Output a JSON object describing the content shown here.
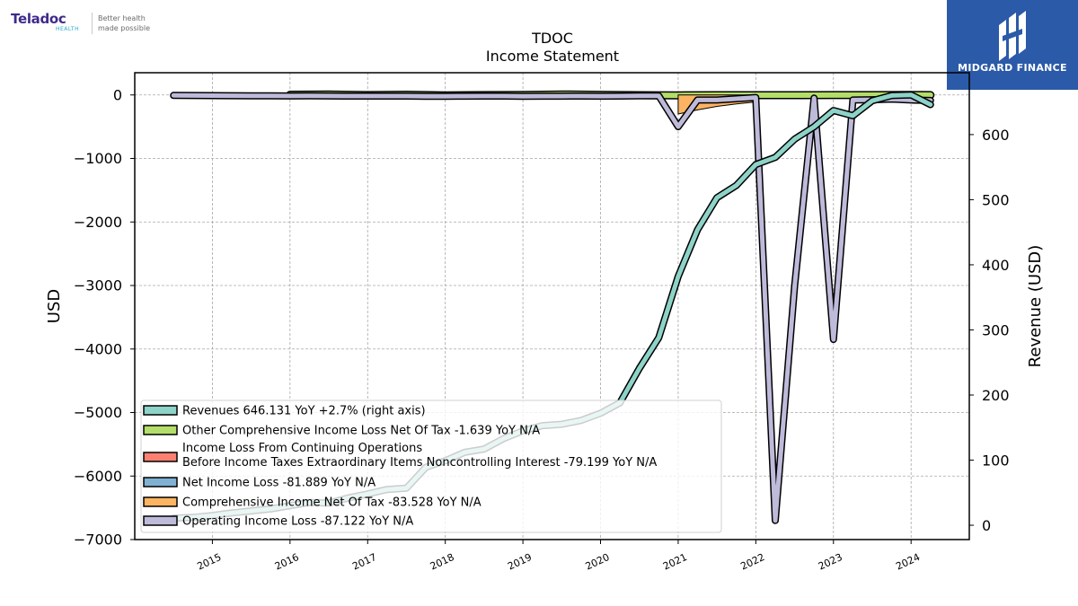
{
  "header": {
    "company_logo": {
      "name": "Teladoc",
      "sub": "HEALTH",
      "tagline_1": "Better health",
      "tagline_2": "made possible"
    },
    "publisher_logo": {
      "name": "MIDGARD FINANCE",
      "color": "#2b5aa8"
    }
  },
  "chart_data": {
    "type": "line",
    "title": "TDOC",
    "subtitle": "Income Statement",
    "ylabel": "USD",
    "ylabel_right": "Revenue (USD)",
    "grid": true,
    "legend_position": "lower-left",
    "xlim": [
      2014.0,
      2024.75
    ],
    "ylim": [
      -7000,
      350
    ],
    "ylim_right": [
      -22,
      695
    ],
    "x_ticks": [
      {
        "value": 2015,
        "label": "2015"
      },
      {
        "value": 2016,
        "label": "2016"
      },
      {
        "value": 2017,
        "label": "2017"
      },
      {
        "value": 2018,
        "label": "2018"
      },
      {
        "value": 2019,
        "label": "2019"
      },
      {
        "value": 2020,
        "label": "2020"
      },
      {
        "value": 2021,
        "label": "2021"
      },
      {
        "value": 2022,
        "label": "2022"
      },
      {
        "value": 2023,
        "label": "2023"
      },
      {
        "value": 2024,
        "label": "2024"
      }
    ],
    "y_ticks_left": [
      {
        "value": 0,
        "label": "0"
      },
      {
        "value": -1000,
        "label": "−1000"
      },
      {
        "value": -2000,
        "label": "−2000"
      },
      {
        "value": -3000,
        "label": "−3000"
      },
      {
        "value": -4000,
        "label": "−4000"
      },
      {
        "value": -5000,
        "label": "−5000"
      },
      {
        "value": -6000,
        "label": "−6000"
      },
      {
        "value": -7000,
        "label": "−7000"
      }
    ],
    "y_ticks_right": [
      {
        "value": 0,
        "label": "0"
      },
      {
        "value": 100,
        "label": "100"
      },
      {
        "value": 200,
        "label": "200"
      },
      {
        "value": 300,
        "label": "300"
      },
      {
        "value": 400,
        "label": "400"
      },
      {
        "value": 500,
        "label": "500"
      },
      {
        "value": 600,
        "label": "600"
      }
    ],
    "series": [
      {
        "name": "Revenues",
        "legend_label": "Revenues  646.131 YoY +2.7% (right axis)",
        "axis": "right",
        "color": "#8dd3c7",
        "style": "thick",
        "x": [
          2014.5,
          2014.75,
          2015.0,
          2015.25,
          2015.5,
          2015.75,
          2016.0,
          2016.25,
          2016.5,
          2016.75,
          2017.0,
          2017.25,
          2017.5,
          2017.75,
          2018.0,
          2018.25,
          2018.5,
          2018.75,
          2019.0,
          2019.25,
          2019.5,
          2019.75,
          2020.0,
          2020.25,
          2020.5,
          2020.75,
          2021.0,
          2021.25,
          2021.5,
          2021.75,
          2022.0,
          2022.25,
          2022.5,
          2022.75,
          2023.0,
          2023.25,
          2023.5,
          2023.75,
          2024.0,
          2024.25
        ],
        "y": [
          11,
          12,
          15,
          19,
          22,
          25,
          30,
          35,
          34,
          42,
          48,
          55,
          57,
          89,
          99,
          112,
          117,
          133,
          145,
          153,
          155,
          161,
          172,
          188,
          241,
          288,
          382,
          454,
          503,
          522,
          554,
          565,
          593,
          612,
          637,
          629,
          652,
          660,
          661,
          646
        ]
      },
      {
        "name": "Other Comprehensive Income Loss Net Of Tax",
        "legend_label": "Other Comprehensive Income Loss Net Of Tax  -1.639 YoY N/A",
        "axis": "left",
        "color": "#b3de69",
        "style": "band",
        "x": [
          2016.0,
          2016.5,
          2017.0,
          2017.5,
          2018.0,
          2018.5,
          2019.0,
          2019.5,
          2020.0,
          2020.5,
          2021.0,
          2021.5,
          2022.0,
          2022.5,
          2023.0,
          2023.5,
          2024.0,
          2024.25
        ],
        "y": [
          4,
          6,
          -2,
          4,
          -6,
          -2,
          0,
          8,
          2,
          -4,
          -6,
          -3,
          -4,
          -3,
          -2,
          -2,
          -1,
          -2
        ]
      },
      {
        "name": "Income Loss From Continuing Operations Before Income Taxes Extraordinary Items Noncontrolling Interest",
        "legend_label": [
          "Income Loss From Continuing Operations",
          "Before Income Taxes Extraordinary Items Noncontrolling Interest  -79.199 YoY N/A"
        ],
        "axis": "left",
        "color": "#fb8072",
        "style": "hidden",
        "x": [],
        "y": []
      },
      {
        "name": "Net Income Loss",
        "legend_label": "Net Income Loss  -81.889 YoY N/A",
        "axis": "left",
        "color": "#80b1d3",
        "style": "hidden",
        "x": [],
        "y": []
      },
      {
        "name": "Comprehensive Income Net Of Tax",
        "legend_label": "Comprehensive Income Net Of Tax  -83.528 YoY N/A",
        "axis": "left",
        "color": "#fdb462",
        "style": "fill",
        "x": [
          2021.0,
          2021.25,
          2021.5,
          2021.75,
          2022.0
        ],
        "y": [
          -300,
          -235,
          -180,
          -140,
          -110
        ]
      },
      {
        "name": "Operating Income Loss",
        "legend_label": "Operating Income Loss  -87.122 YoY N/A",
        "axis": "left",
        "color": "#bebada",
        "style": "thick",
        "x": [
          2014.5,
          2014.75,
          2015.0,
          2015.25,
          2015.5,
          2015.75,
          2016.0,
          2016.25,
          2016.5,
          2016.75,
          2017.0,
          2017.25,
          2017.5,
          2017.75,
          2018.0,
          2018.25,
          2018.5,
          2018.75,
          2019.0,
          2019.25,
          2019.5,
          2019.75,
          2020.0,
          2020.25,
          2020.5,
          2020.75,
          2021.0,
          2021.25,
          2021.5,
          2021.75,
          2022.0,
          2022.25,
          2022.5,
          2022.75,
          2023.0,
          2023.25,
          2023.5,
          2023.75,
          2024.0,
          2024.25
        ],
        "y": [
          -8,
          -9,
          -10,
          -12,
          -13,
          -14,
          -16,
          -15,
          -16,
          -17,
          -18,
          -17,
          -18,
          -20,
          -21,
          -19,
          -18,
          -18,
          -20,
          -19,
          -19,
          -18,
          -19,
          -17,
          -14,
          -15,
          -500,
          -80,
          -80,
          -60,
          -40,
          -6700,
          -3000,
          -50,
          -3850,
          -80,
          -75,
          -65,
          -80,
          -87
        ]
      }
    ]
  }
}
